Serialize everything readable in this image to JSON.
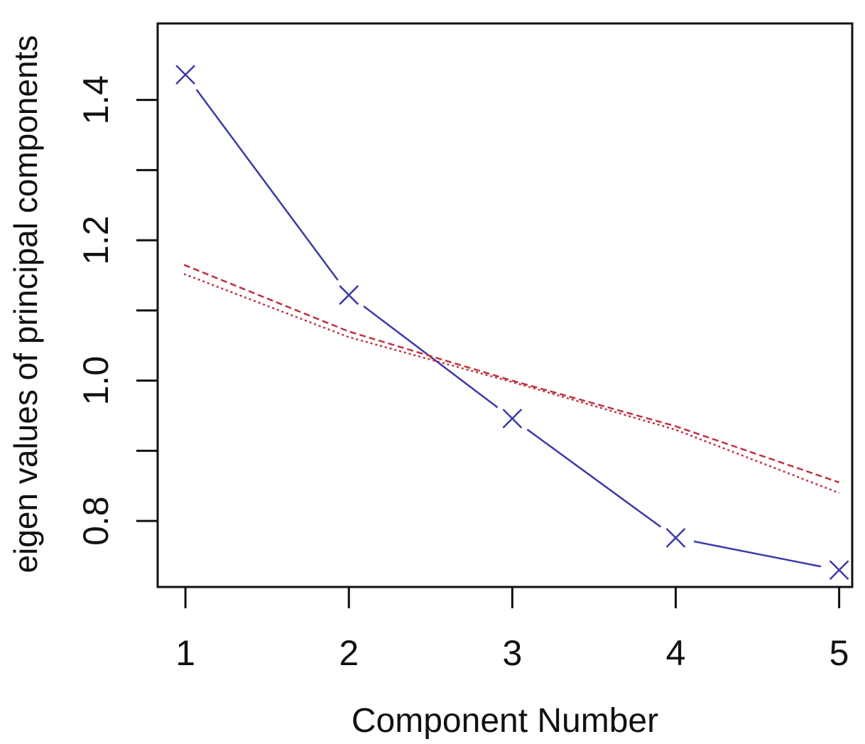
{
  "chart_data": {
    "type": "line",
    "xlabel": "Component Number",
    "ylabel": "eigen values of principal components",
    "x": [
      1,
      2,
      3,
      4,
      5
    ],
    "x_ticks": [
      "1",
      "2",
      "3",
      "4",
      "5"
    ],
    "y_ticks": [
      "0.8",
      "1.0",
      "1.2",
      "1.4"
    ],
    "y_tick_values": [
      0.8,
      1.0,
      1.2,
      1.4
    ],
    "xlim": [
      0.83,
      5.08
    ],
    "ylim": [
      0.706,
      1.509
    ],
    "grid": false,
    "series": [
      {
        "values": [
          1.436,
          1.122,
          0.946,
          0.776,
          0.73
        ],
        "color": "#3a3aa8",
        "style": "solid",
        "marker": "x"
      },
      {
        "values": [
          1.165,
          1.07,
          1.0,
          0.935,
          0.855
        ],
        "color": "#c0313f",
        "style": "dashed"
      },
      {
        "values": [
          1.152,
          1.062,
          0.998,
          0.93,
          0.84
        ],
        "color": "#c0313f",
        "style": "dotted"
      }
    ]
  }
}
